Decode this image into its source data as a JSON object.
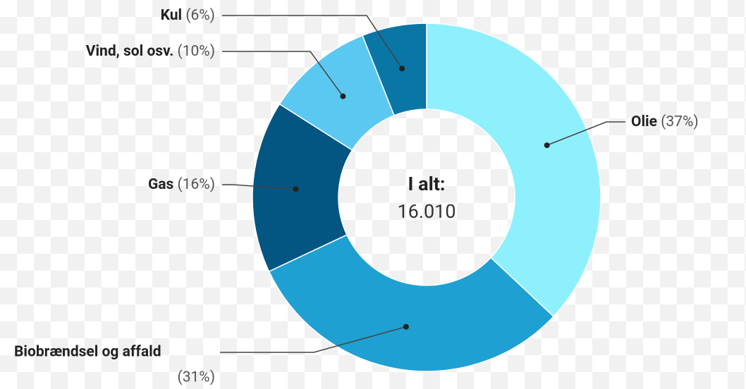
{
  "chart_data": {
    "type": "donut",
    "categories": [
      "Olie",
      "Biobrændsel og affald",
      "Gas",
      "Vind, sol osv.",
      "Kul"
    ],
    "values": [
      37,
      31,
      16,
      10,
      6
    ],
    "value_labels": [
      "(37%)",
      "(31%)",
      "(16%)",
      "(10%)",
      "(6%)"
    ],
    "colors": [
      "#8ff0fd",
      "#1fa0d2",
      "#035582",
      "#5bc8f2",
      "#0a76a6"
    ],
    "center_title": "I alt:",
    "center_value": "16.010"
  }
}
